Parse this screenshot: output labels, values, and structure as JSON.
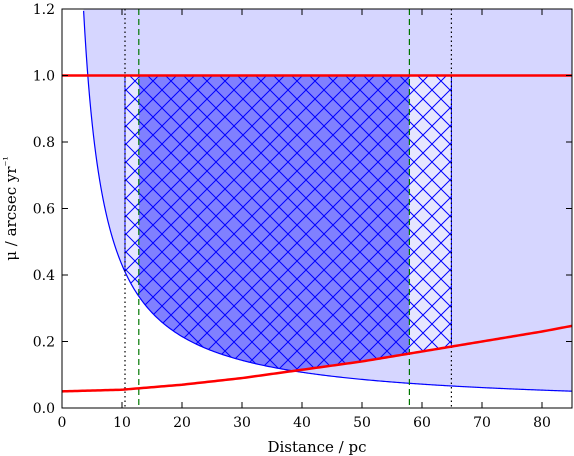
{
  "chart_data": {
    "type": "area",
    "xlabel": "Distance / pc",
    "ylabel": "μ / arcsec yr⁻¹",
    "xlim": [
      0,
      85
    ],
    "ylim": [
      0,
      1.2
    ],
    "xticks": [
      0,
      10,
      20,
      30,
      40,
      50,
      60,
      70,
      80
    ],
    "yticks": [
      0.0,
      0.2,
      0.4,
      0.6,
      0.8,
      1.0,
      1.2
    ],
    "grid": false,
    "legend": "none",
    "series": [
      {
        "kind": "line",
        "color": "#ff0000",
        "x": [
          0,
          10,
          20,
          30,
          40,
          50,
          60,
          70,
          80,
          85
        ],
        "y": [
          0.05,
          0.055,
          0.07,
          0.09,
          0.115,
          0.14,
          0.17,
          0.2,
          0.23,
          0.247
        ]
      },
      {
        "kind": "line",
        "color": "#0000ff",
        "formula": "mu = k / d",
        "k": 4.3,
        "x_range": [
          3.6,
          85
        ]
      },
      {
        "kind": "hline",
        "y": 1.0,
        "color": "#ff0000"
      },
      {
        "kind": "vline",
        "x": 10.5,
        "style": "dotted",
        "color": "#000000"
      },
      {
        "kind": "vline",
        "x": 64.9,
        "style": "dotted",
        "color": "#000000"
      },
      {
        "kind": "vline",
        "x": 12.8,
        "style": "dashed",
        "color": "#007700"
      },
      {
        "kind": "vline",
        "x": 57.9,
        "style": "dashed",
        "color": "#007700"
      }
    ],
    "regions": [
      {
        "kind": "light-fill",
        "color": "#d6d6ff",
        "bounds": "mu >= k/d"
      },
      {
        "kind": "crosshatch",
        "x": [
          10.5,
          64.9
        ],
        "bounds": "max(k/d, red) <= mu <= 1.0",
        "color": "#0000ff"
      },
      {
        "kind": "solid-fill",
        "x": [
          12.8,
          57.9
        ],
        "bounds": "max(k/d, red) <= mu <= 1.0",
        "color": "#8080ff"
      }
    ]
  }
}
